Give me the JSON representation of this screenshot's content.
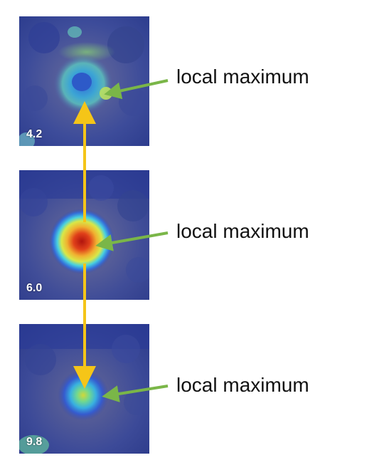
{
  "colors": {
    "background": "#ffffff",
    "scale_arrow": "#f5c518",
    "pointer_arrow": "#7ab648",
    "heatmap_base": "#3a4fa8"
  },
  "panels": [
    {
      "scale": "4.2",
      "annotation": "local maximum",
      "heat_peak": "medium",
      "blob_colors": [
        "#2f5bd8",
        "#3aa0e0",
        "#5ad0c8",
        "#9ee06a"
      ]
    },
    {
      "scale": "6.0",
      "annotation": "local maximum",
      "heat_peak": "high",
      "blob_colors": [
        "#2f5bd8",
        "#3ad0e8",
        "#f0e040",
        "#f06a1a",
        "#c01a10"
      ]
    },
    {
      "scale": "9.8",
      "annotation": "local maximum",
      "heat_peak": "medium",
      "blob_colors": [
        "#2f5bd8",
        "#38b0e0",
        "#6ad8a0",
        "#c8d838"
      ]
    }
  ]
}
